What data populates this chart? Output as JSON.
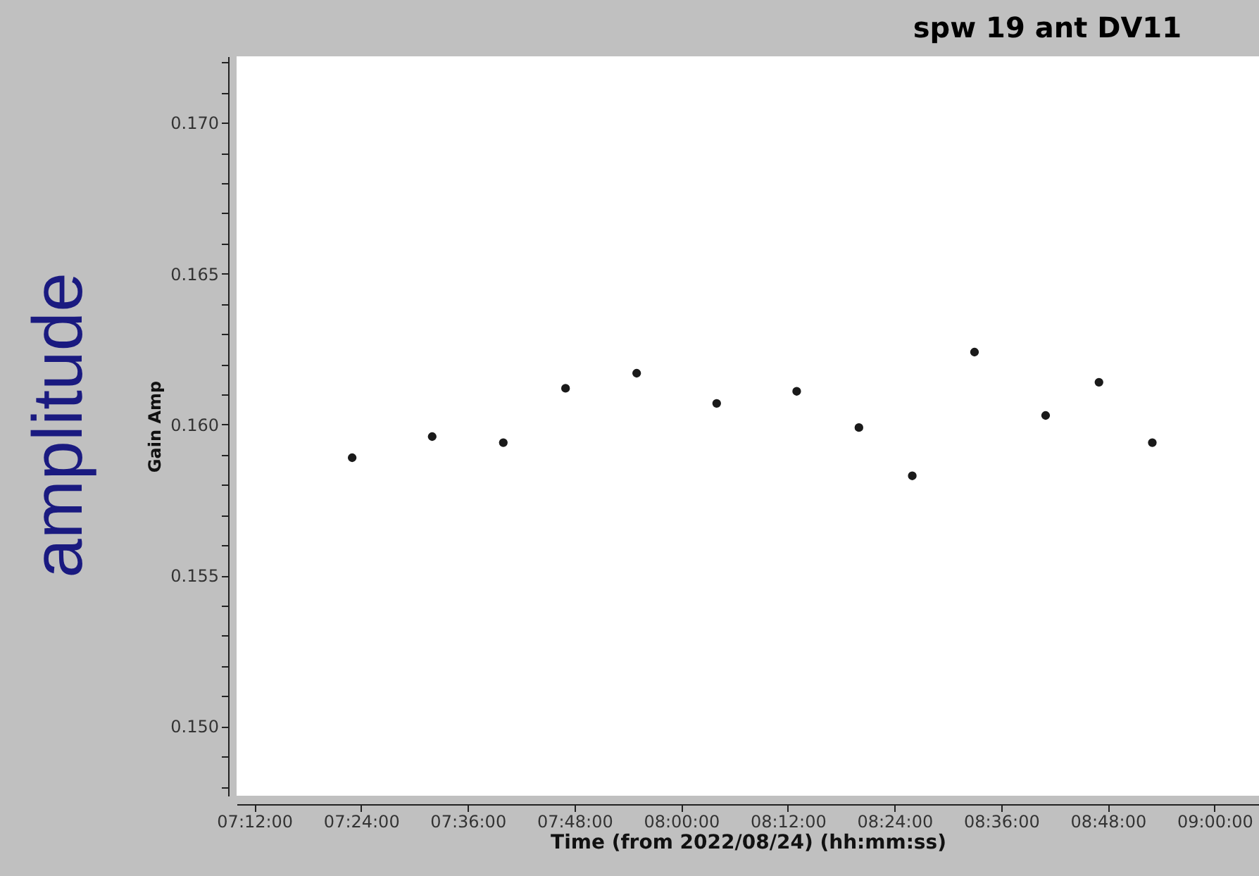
{
  "chart_data": {
    "type": "scatter",
    "title": "spw 19 ant DV11",
    "xlabel": "Time (from 2022/08/24) (hh:mm:ss)",
    "ylabel": "Gain Amp",
    "annotations": [
      "amplitude"
    ],
    "x": [
      "2022-08-24T07:23",
      "2022-08-24T07:32",
      "2022-08-24T07:40",
      "2022-08-24T07:47",
      "2022-08-24T07:55",
      "2022-08-24T08:04",
      "2022-08-24T08:13",
      "2022-08-24T08:20",
      "2022-08-24T08:26",
      "2022-08-24T08:33",
      "2022-08-24T08:41",
      "2022-08-24T08:47",
      "2022-08-24T08:53"
    ],
    "series": [
      {
        "color": "#1a1a1a",
        "values": [
          0.1589,
          0.1596,
          0.1594,
          0.1612,
          0.1617,
          0.1607,
          0.1611,
          0.1599,
          0.1583,
          0.1624,
          0.1603,
          0.1614,
          0.1594
        ]
      }
    ],
    "grid": false,
    "xlim": [
      "2022-08-24T07:10",
      "2022-08-24T09:05"
    ],
    "xticks": [
      {
        "value": "2022-08-24T07:12",
        "label": "07:12:00"
      },
      {
        "value": "2022-08-24T07:24",
        "label": "07:24:00"
      },
      {
        "value": "2022-08-24T07:36",
        "label": "07:36:00"
      },
      {
        "value": "2022-08-24T07:48",
        "label": "07:48:00"
      },
      {
        "value": "2022-08-24T08:00",
        "label": "08:00:00"
      },
      {
        "value": "2022-08-24T08:12",
        "label": "08:12:00"
      },
      {
        "value": "2022-08-24T08:24",
        "label": "08:24:00"
      },
      {
        "value": "2022-08-24T08:36",
        "label": "08:36:00"
      },
      {
        "value": "2022-08-24T08:48",
        "label": "08:48:00"
      },
      {
        "value": "2022-08-24T09:00",
        "label": "09:00:00"
      }
    ],
    "ylim": [
      0.1477,
      0.1722
    ],
    "yticks": [
      {
        "value": 0.148,
        "label": null
      },
      {
        "value": 0.149,
        "label": null
      },
      {
        "value": 0.15,
        "label": "0.150"
      },
      {
        "value": 0.151,
        "label": null
      },
      {
        "value": 0.152,
        "label": null
      },
      {
        "value": 0.153,
        "label": null
      },
      {
        "value": 0.154,
        "label": null
      },
      {
        "value": 0.155,
        "label": "0.155"
      },
      {
        "value": 0.156,
        "label": null
      },
      {
        "value": 0.157,
        "label": null
      },
      {
        "value": 0.158,
        "label": null
      },
      {
        "value": 0.159,
        "label": null
      },
      {
        "value": 0.16,
        "label": "0.160"
      },
      {
        "value": 0.161,
        "label": null
      },
      {
        "value": 0.162,
        "label": null
      },
      {
        "value": 0.163,
        "label": null
      },
      {
        "value": 0.164,
        "label": null
      },
      {
        "value": 0.165,
        "label": "0.165"
      },
      {
        "value": 0.166,
        "label": null
      },
      {
        "value": 0.167,
        "label": null
      },
      {
        "value": 0.168,
        "label": null
      },
      {
        "value": 0.169,
        "label": null
      },
      {
        "value": 0.17,
        "label": "0.170"
      },
      {
        "value": 0.171,
        "label": null
      },
      {
        "value": 0.172,
        "label": null
      }
    ]
  }
}
